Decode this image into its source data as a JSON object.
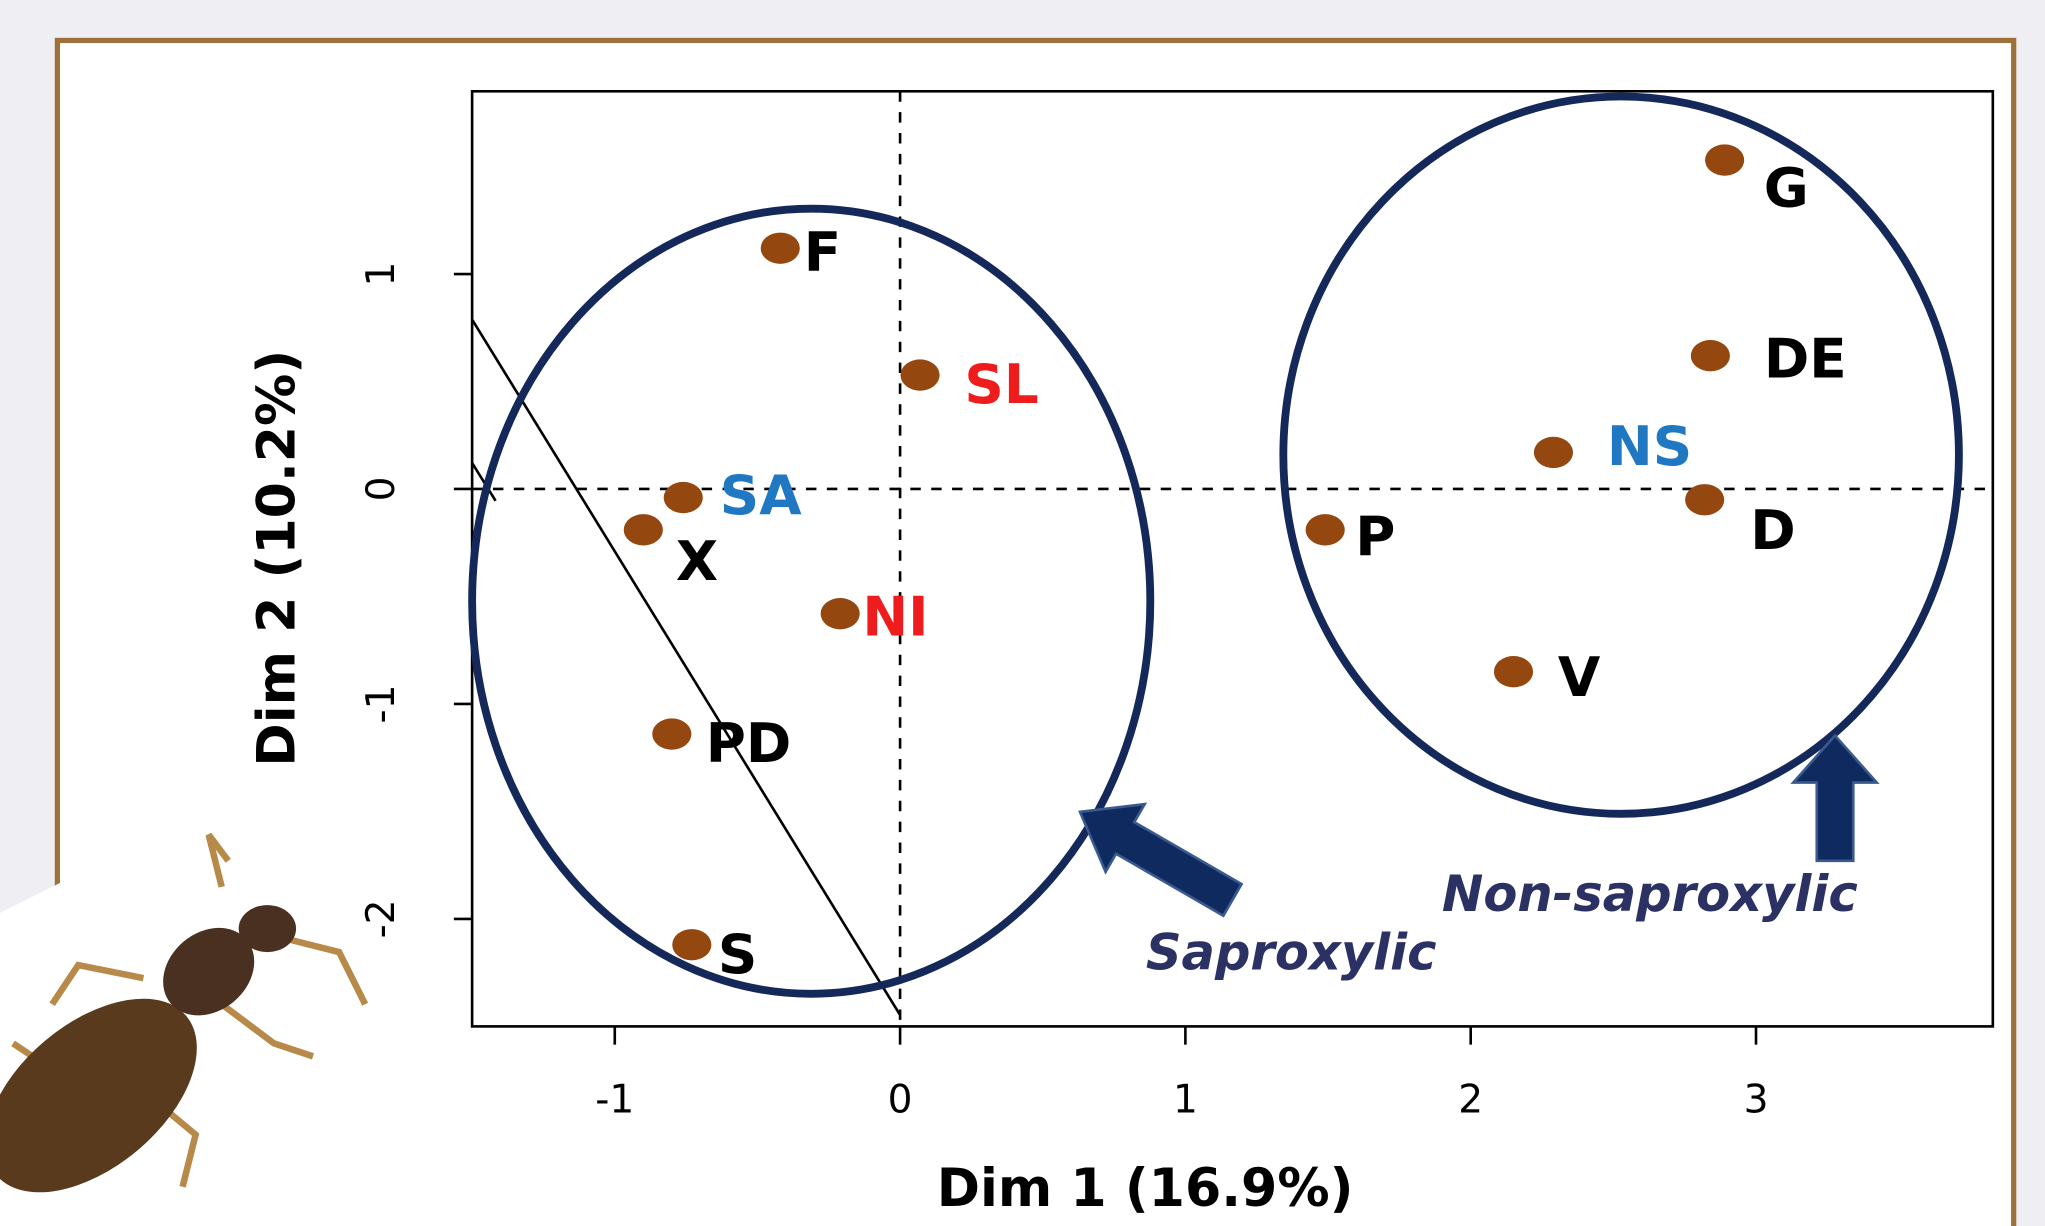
{
  "chart_data": {
    "type": "scatter",
    "x_label": "Dim 1 (16.9%)",
    "y_label": "Dim 2 (10.2%)",
    "labels": [
      "F",
      "SL",
      "SA",
      "X",
      "NI",
      "PD",
      "S",
      "G",
      "DE",
      "NS",
      "D",
      "P",
      "V"
    ],
    "x": [
      -0.42,
      0.07,
      -0.76,
      -0.9,
      -0.21,
      -0.8,
      -0.73,
      2.89,
      2.84,
      2.29,
      2.82,
      1.49,
      2.15
    ],
    "values": [
      1.12,
      0.53,
      -0.04,
      -0.19,
      -0.58,
      -1.14,
      -2.12,
      1.53,
      0.62,
      0.17,
      -0.05,
      -0.19,
      -0.85
    ],
    "color": "#94470f",
    "label_colors": [
      "#000000",
      "#ee1c1c",
      "#1f78c1",
      "#000000",
      "#ee1c1c",
      "#000000",
      "#000000",
      "#000000",
      "#000000",
      "#1f78c1",
      "#000000",
      "#000000",
      "#000000"
    ],
    "xlim": [
      -1.5,
      3.83
    ],
    "ylim": [
      -2.5,
      1.85
    ],
    "xticks": [
      -1,
      0,
      1,
      2,
      3
    ],
    "yticks": [
      -2,
      -1,
      0,
      1
    ],
    "annotations": [
      "Saproxylic",
      "Non-saproxylic"
    ]
  }
}
